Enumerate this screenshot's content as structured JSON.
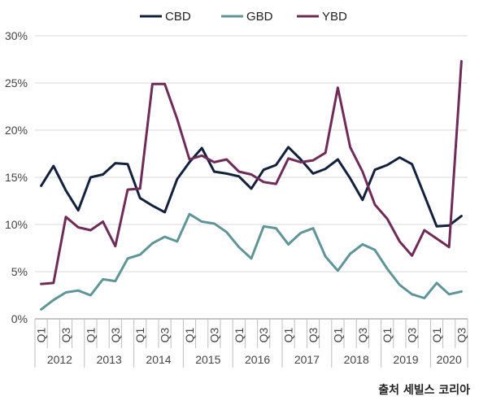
{
  "chart_data": {
    "type": "line",
    "title": "",
    "xlabel": "",
    "ylabel": "",
    "ylim": [
      0,
      30
    ],
    "y_ticks": [
      "0%",
      "5%",
      "10%",
      "15%",
      "20%",
      "25%",
      "30%"
    ],
    "grid": "horizontal",
    "legend_position": "top",
    "quarter_labels": [
      "Q1",
      "Q3"
    ],
    "years": [
      "2012",
      "2013",
      "2014",
      "2015",
      "2016",
      "2017",
      "2018",
      "2019",
      "2020"
    ],
    "x": [
      "2012 Q1",
      "2012 Q2",
      "2012 Q3",
      "2012 Q4",
      "2013 Q1",
      "2013 Q2",
      "2013 Q3",
      "2013 Q4",
      "2014 Q1",
      "2014 Q2",
      "2014 Q3",
      "2014 Q4",
      "2015 Q1",
      "2015 Q2",
      "2015 Q3",
      "2015 Q4",
      "2016 Q1",
      "2016 Q2",
      "2016 Q3",
      "2016 Q4",
      "2017 Q1",
      "2017 Q2",
      "2017 Q3",
      "2017 Q4",
      "2018 Q1",
      "2018 Q2",
      "2018 Q3",
      "2018 Q4",
      "2019 Q1",
      "2019 Q2",
      "2019 Q3",
      "2019 Q4",
      "2020 Q1",
      "2020 Q2",
      "2020 Q3"
    ],
    "series": [
      {
        "name": "CBD",
        "color": "#14213d",
        "values": [
          14.1,
          16.2,
          13.6,
          11.5,
          15.0,
          15.3,
          16.5,
          16.4,
          12.8,
          12.0,
          11.3,
          14.8,
          16.6,
          18.1,
          15.6,
          15.4,
          15.1,
          13.8,
          15.8,
          16.3,
          18.2,
          16.9,
          15.4,
          15.9,
          16.9,
          14.9,
          12.6,
          15.8,
          16.3,
          17.1,
          16.4,
          13.1,
          9.8,
          9.9,
          10.9
        ]
      },
      {
        "name": "GBD",
        "color": "#5f9597",
        "values": [
          1.0,
          2.0,
          2.8,
          3.0,
          2.5,
          4.2,
          4.0,
          6.4,
          6.8,
          8.0,
          8.7,
          8.2,
          11.1,
          10.3,
          10.1,
          9.2,
          7.6,
          6.4,
          9.8,
          9.6,
          7.9,
          9.1,
          9.6,
          6.6,
          5.1,
          6.9,
          7.9,
          7.3,
          5.3,
          3.6,
          2.6,
          2.2,
          3.8,
          2.6,
          2.9
        ]
      },
      {
        "name": "YBD",
        "color": "#6e2c57",
        "values": [
          3.7,
          3.8,
          10.8,
          9.7,
          9.4,
          10.3,
          7.7,
          13.7,
          13.8,
          24.9,
          24.9,
          21.2,
          16.9,
          17.3,
          16.6,
          16.9,
          15.6,
          15.3,
          14.5,
          14.3,
          17.0,
          16.6,
          16.8,
          17.6,
          24.5,
          18.2,
          15.6,
          12.1,
          10.6,
          8.2,
          6.7,
          9.4,
          8.5,
          7.6,
          27.3
        ]
      }
    ]
  },
  "source_label": "출처 세빌스 코리아"
}
